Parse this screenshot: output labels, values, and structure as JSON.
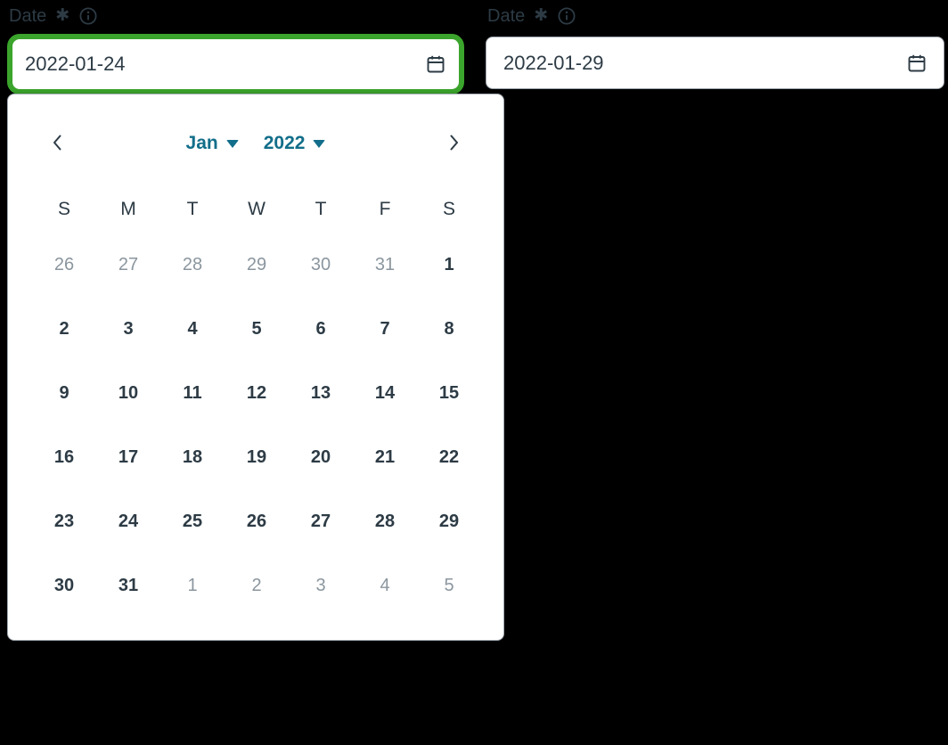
{
  "colors": {
    "background": "#000000",
    "text": "#2D3B45",
    "muted_day": "#8B969E",
    "accent_teal": "#126E8A",
    "focus_ring_green": "#3BA42C",
    "panel_border": "#A5ADB4",
    "input_background": "#FFFFFF"
  },
  "icons": {
    "calendar": "calendar-icon",
    "info": "info-icon",
    "chevron_left": "chevron-left-icon",
    "chevron_right": "chevron-right-icon",
    "caret_down": "caret-down-icon"
  },
  "fields": [
    {
      "label": "Date",
      "required_marker": "✱",
      "value": "2022-01-24",
      "focused": true
    },
    {
      "label": "Date",
      "required_marker": "✱",
      "value": "2022-01-29",
      "focused": false
    }
  ],
  "calendar": {
    "month": "Jan",
    "year": "2022",
    "weekdays": [
      "S",
      "M",
      "T",
      "W",
      "T",
      "F",
      "S"
    ],
    "days": [
      {
        "d": "26",
        "muted": true
      },
      {
        "d": "27",
        "muted": true
      },
      {
        "d": "28",
        "muted": true
      },
      {
        "d": "29",
        "muted": true
      },
      {
        "d": "30",
        "muted": true
      },
      {
        "d": "31",
        "muted": true
      },
      {
        "d": "1",
        "muted": false
      },
      {
        "d": "2",
        "muted": false
      },
      {
        "d": "3",
        "muted": false
      },
      {
        "d": "4",
        "muted": false
      },
      {
        "d": "5",
        "muted": false
      },
      {
        "d": "6",
        "muted": false
      },
      {
        "d": "7",
        "muted": false
      },
      {
        "d": "8",
        "muted": false
      },
      {
        "d": "9",
        "muted": false
      },
      {
        "d": "10",
        "muted": false
      },
      {
        "d": "11",
        "muted": false
      },
      {
        "d": "12",
        "muted": false
      },
      {
        "d": "13",
        "muted": false
      },
      {
        "d": "14",
        "muted": false
      },
      {
        "d": "15",
        "muted": false
      },
      {
        "d": "16",
        "muted": false
      },
      {
        "d": "17",
        "muted": false
      },
      {
        "d": "18",
        "muted": false
      },
      {
        "d": "19",
        "muted": false
      },
      {
        "d": "20",
        "muted": false
      },
      {
        "d": "21",
        "muted": false
      },
      {
        "d": "22",
        "muted": false
      },
      {
        "d": "23",
        "muted": false
      },
      {
        "d": "24",
        "muted": false
      },
      {
        "d": "25",
        "muted": false
      },
      {
        "d": "26",
        "muted": false
      },
      {
        "d": "27",
        "muted": false
      },
      {
        "d": "28",
        "muted": false
      },
      {
        "d": "29",
        "muted": false
      },
      {
        "d": "30",
        "muted": false
      },
      {
        "d": "31",
        "muted": false
      },
      {
        "d": "1",
        "muted": true
      },
      {
        "d": "2",
        "muted": true
      },
      {
        "d": "3",
        "muted": true
      },
      {
        "d": "4",
        "muted": true
      },
      {
        "d": "5",
        "muted": true
      }
    ]
  }
}
